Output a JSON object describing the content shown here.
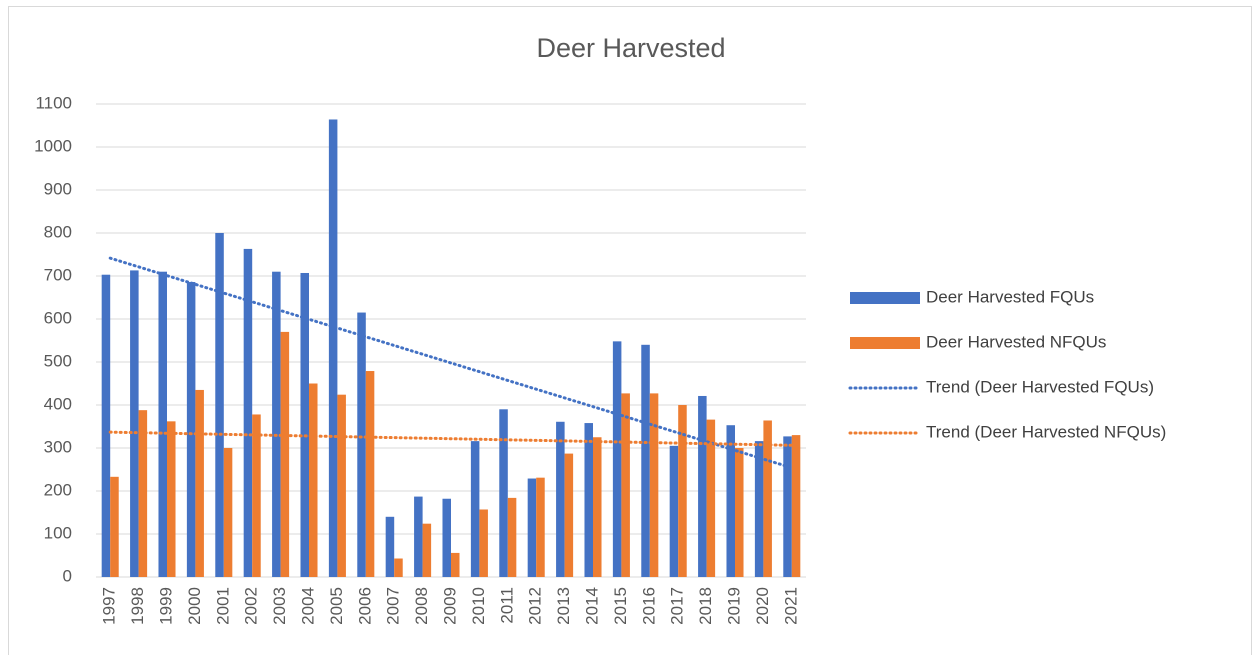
{
  "chart_data": {
    "type": "bar",
    "title": "Deer Harvested",
    "categories": [
      "1997",
      "1998",
      "1999",
      "2000",
      "2001",
      "2002",
      "2003",
      "2004",
      "2005",
      "2006",
      "2007",
      "2008",
      "2009",
      "2010",
      "2011",
      "2012",
      "2013",
      "2014",
      "2015",
      "2016",
      "2017",
      "2018",
      "2019",
      "2020",
      "2021"
    ],
    "series": [
      {
        "name": "Deer Harvested FQUs",
        "color": "#4472c4",
        "trendline_name": "Trend (Deer Harvested FQUs)",
        "values": [
          703,
          713,
          710,
          686,
          800,
          763,
          710,
          707,
          1064,
          615,
          140,
          187,
          182,
          316,
          390,
          229,
          361,
          358,
          548,
          540,
          305,
          421,
          353,
          316,
          327
        ]
      },
      {
        "name": "Deer Harvested NFQUs",
        "color": "#ed7d31",
        "trendline_name": "Trend (Deer Harvested NFQUs)",
        "values": [
          233,
          388,
          362,
          435,
          300,
          378,
          570,
          450,
          424,
          479,
          43,
          124,
          56,
          157,
          184,
          231,
          287,
          325,
          427,
          427,
          400,
          366,
          300,
          364,
          330
        ]
      }
    ],
    "ylim": [
      0,
      1100
    ],
    "yticks": [
      0,
      100,
      200,
      300,
      400,
      500,
      600,
      700,
      800,
      900,
      1000,
      1100
    ],
    "grid": true
  }
}
